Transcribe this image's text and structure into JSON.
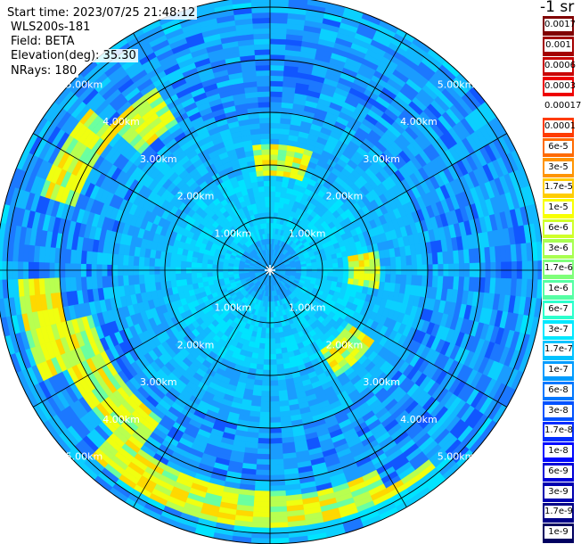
{
  "header": {
    "start_time": "Start time: 2023/07/25 21:48:12",
    "instrument": "WLS200s-181",
    "field": "Field: BETA",
    "elevation": "Elevation(deg): 35.30",
    "nrays": "NRays: 180"
  },
  "colorbar": {
    "unit": "-1 sr",
    "labels": [
      "0.0017",
      "0.001",
      "0.0006",
      "0.0003",
      "0.00017",
      "0.0001",
      "6e-5",
      "3e-5",
      "1.7e-5",
      "1e-5",
      "6e-6",
      "3e-6",
      "1.7e-6",
      "1e-6",
      "6e-7",
      "3e-7",
      "1.7e-7",
      "1e-7",
      "6e-8",
      "3e-8",
      "1.7e-8",
      "1e-8",
      "6e-9",
      "3e-9",
      "1.7e-9",
      "1e-9"
    ],
    "colors": [
      "#800000",
      "#a30000",
      "#c80000",
      "#ee0000",
      "#ffffff",
      "#ff3b00",
      "#ff6a00",
      "#ff9400",
      "#ffcd00",
      "#f8ff00",
      "#d0ff28",
      "#a8ff50",
      "#7fff7a",
      "#55ffa4",
      "#2cffcd",
      "#00e8ff",
      "#00c2ff",
      "#009cff",
      "#0078ff",
      "#0052ff",
      "#002cff",
      "#0008ff",
      "#0000d8",
      "#0000b0",
      "#000088",
      "#000060"
    ]
  },
  "ppi": {
    "range_rings_km": [
      1,
      2,
      3,
      4,
      5
    ],
    "ring_labels": [
      "1.00km",
      "2.00km",
      "3.00km",
      "4.00km",
      "5.00km"
    ],
    "azimuth_lines": 12,
    "max_range_km": 5.2
  }
}
